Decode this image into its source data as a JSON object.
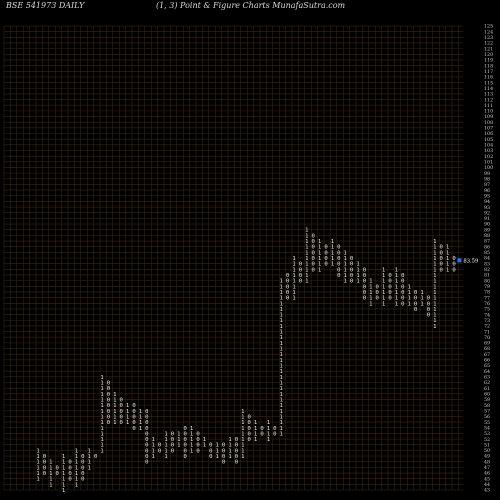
{
  "header": {
    "left": "BSE 541973 DAILY",
    "center": "(1, 3) Point & Figure    Charts MunafaSutra.com"
  },
  "chart_data": {
    "type": "point-and-figure",
    "box_size": 1,
    "reversal": 3,
    "y_axis": {
      "min": 43,
      "max": 125,
      "side": "right",
      "tick_step": 1
    },
    "grid": true,
    "colors": {
      "background": "#000000",
      "grid": "#3a2612",
      "marks": "#e8e8e8",
      "axis_labels": "#c8c8c8",
      "last_price_marker": "#2a6fff",
      "last_price_label": "#ffffff"
    },
    "last_price": {
      "value": 83.59,
      "label": "83.59"
    },
    "columns": [
      {
        "symbol": "1",
        "low": 45,
        "high": 50
      },
      {
        "symbol": "0",
        "low": 46,
        "high": 49
      },
      {
        "symbol": "1",
        "low": 44,
        "high": 48
      },
      {
        "symbol": "0",
        "low": 46,
        "high": 47
      },
      {
        "symbol": "1",
        "low": 43,
        "high": 49
      },
      {
        "symbol": "0",
        "low": 45,
        "high": 48
      },
      {
        "symbol": "1",
        "low": 44,
        "high": 50
      },
      {
        "symbol": "0",
        "low": 45,
        "high": 49
      },
      {
        "symbol": "1",
        "low": 47,
        "high": 50
      },
      {
        "symbol": "0",
        "low": 49,
        "high": 49
      },
      {
        "symbol": "1",
        "low": 50,
        "high": 63
      },
      {
        "symbol": "0",
        "low": 55,
        "high": 62
      },
      {
        "symbol": "1",
        "low": 55,
        "high": 60
      },
      {
        "symbol": "0",
        "low": 55,
        "high": 59
      },
      {
        "symbol": "1",
        "low": 55,
        "high": 58
      },
      {
        "symbol": "0",
        "low": 54,
        "high": 58
      },
      {
        "symbol": "1",
        "low": 54,
        "high": 57
      },
      {
        "symbol": "0",
        "low": 48,
        "high": 57
      },
      {
        "symbol": "1",
        "low": 49,
        "high": 52
      },
      {
        "symbol": "0",
        "low": 50,
        "high": 51
      },
      {
        "symbol": "1",
        "low": 49,
        "high": 53
      },
      {
        "symbol": "0",
        "low": 50,
        "high": 53
      },
      {
        "symbol": "1",
        "low": 51,
        "high": 53
      },
      {
        "symbol": "0",
        "low": 49,
        "high": 54
      },
      {
        "symbol": "1",
        "low": 50,
        "high": 54
      },
      {
        "symbol": "0",
        "low": 50,
        "high": 53
      },
      {
        "symbol": "1",
        "low": 51,
        "high": 52
      },
      {
        "symbol": "0",
        "low": 49,
        "high": 51
      },
      {
        "symbol": "1",
        "low": 49,
        "high": 51
      },
      {
        "symbol": "0",
        "low": 48,
        "high": 51
      },
      {
        "symbol": "1",
        "low": 49,
        "high": 52
      },
      {
        "symbol": "0",
        "low": 48,
        "high": 52
      },
      {
        "symbol": "1",
        "low": 49,
        "high": 57
      },
      {
        "symbol": "0",
        "low": 52,
        "high": 56
      },
      {
        "symbol": "1",
        "low": 52,
        "high": 55
      },
      {
        "symbol": "0",
        "low": 53,
        "high": 54
      },
      {
        "symbol": "1",
        "low": 52,
        "high": 55
      },
      {
        "symbol": "0",
        "low": 53,
        "high": 54
      },
      {
        "symbol": "1",
        "low": 53,
        "high": 80
      },
      {
        "symbol": "0",
        "low": 77,
        "high": 81
      },
      {
        "symbol": "1",
        "low": 77,
        "high": 84
      },
      {
        "symbol": "0",
        "low": 80,
        "high": 83
      },
      {
        "symbol": "1",
        "low": 80,
        "high": 89
      },
      {
        "symbol": "0",
        "low": 82,
        "high": 88
      },
      {
        "symbol": "1",
        "low": 82,
        "high": 87
      },
      {
        "symbol": "0",
        "low": 83,
        "high": 86
      },
      {
        "symbol": "1",
        "low": 83,
        "high": 87
      },
      {
        "symbol": "0",
        "low": 81,
        "high": 86
      },
      {
        "symbol": "1",
        "low": 80,
        "high": 85
      },
      {
        "symbol": "0",
        "low": 80,
        "high": 84
      },
      {
        "symbol": "1",
        "low": 80,
        "high": 83
      },
      {
        "symbol": "0",
        "low": 77,
        "high": 82
      },
      {
        "symbol": "1",
        "low": 76,
        "high": 80
      },
      {
        "symbol": "0",
        "low": 77,
        "high": 79
      },
      {
        "symbol": "1",
        "low": 76,
        "high": 82
      },
      {
        "symbol": "0",
        "low": 77,
        "high": 81
      },
      {
        "symbol": "1",
        "low": 76,
        "high": 82
      },
      {
        "symbol": "0",
        "low": 76,
        "high": 81
      },
      {
        "symbol": "1",
        "low": 76,
        "high": 79
      },
      {
        "symbol": "0",
        "low": 75,
        "high": 78
      },
      {
        "symbol": "1",
        "low": 76,
        "high": 78
      },
      {
        "symbol": "0",
        "low": 74,
        "high": 77
      },
      {
        "symbol": "1",
        "low": 72,
        "high": 87
      },
      {
        "symbol": "0",
        "low": 82,
        "high": 86
      },
      {
        "symbol": "1",
        "low": 82,
        "high": 86
      },
      {
        "symbol": "0",
        "low": 82,
        "high": 84
      }
    ]
  }
}
